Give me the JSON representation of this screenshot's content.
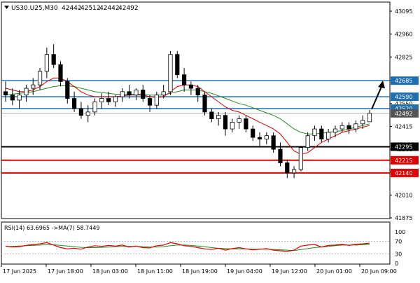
{
  "window": {
    "title_symbol": "US30.U25,M30",
    "ohlc": [
      "42442",
      "42512",
      "42442",
      "42492"
    ],
    "indicator_label": "RSI(14) 63.6965  ->MA(7) 58.7449"
  },
  "colors": {
    "candle": "#000000",
    "ma_fast": "#d40000",
    "ma_slow": "#228b22",
    "support_line": "#000000",
    "resistance_line": "#1f6fb2",
    "red_level": "#e00000",
    "rsi_line": "#e00000",
    "rsi_ma": "#1e8a1e",
    "label_blue_bg": "#1f6fb2",
    "label_red_bg": "#e00000",
    "label_black_bg": "#000000",
    "label_gray_bg": "#555555"
  },
  "chart_data": [
    {
      "type": "candlestick",
      "ylim": [
        41875,
        43095
      ],
      "yticks": [
        "43095",
        "42960",
        "42825",
        "42685",
        "42550",
        "42415",
        "42280",
        "42145",
        "42010",
        "41875"
      ],
      "xtick_labels": [
        "17 Jun 2025",
        "17 Jun 18:00",
        "18 Jun 03:00",
        "18 Jun 11:00",
        "18 Jun 19:00",
        "19 Jun 04:00",
        "19 Jun 12:00",
        "20 Jun 01:00",
        "20 Jun 09:00"
      ],
      "levels": [
        {
          "label": "42685",
          "value": 42685,
          "role": "resistance"
        },
        {
          "label": "42590",
          "value": 42590,
          "role": "resistance"
        },
        {
          "label": "42520",
          "value": 42520,
          "role": "resistance"
        },
        {
          "label": "42295",
          "value": 42295,
          "role": "support"
        },
        {
          "label": "42215",
          "value": 42215,
          "role": "support"
        },
        {
          "label": "42140",
          "value": 42140,
          "role": "support"
        }
      ],
      "current_price": {
        "label": "42492",
        "value": 42492
      },
      "series_ohlc": [
        [
          42620,
          42680,
          42560,
          42600
        ],
        [
          42600,
          42640,
          42540,
          42570
        ],
        [
          42570,
          42630,
          42520,
          42600
        ],
        [
          42600,
          42660,
          42560,
          42640
        ],
        [
          42640,
          42700,
          42600,
          42660
        ],
        [
          42660,
          42760,
          42630,
          42740
        ],
        [
          42740,
          42880,
          42700,
          42840
        ],
        [
          42840,
          42900,
          42760,
          42780
        ],
        [
          42780,
          42800,
          42650,
          42680
        ],
        [
          42680,
          42700,
          42550,
          42580
        ],
        [
          42580,
          42620,
          42500,
          42520
        ],
        [
          42520,
          42560,
          42460,
          42480
        ],
        [
          42480,
          42540,
          42440,
          42500
        ],
        [
          42500,
          42580,
          42480,
          42560
        ],
        [
          42560,
          42610,
          42520,
          42580
        ],
        [
          42580,
          42620,
          42540,
          42560
        ],
        [
          42560,
          42600,
          42530,
          42590
        ],
        [
          42590,
          42640,
          42560,
          42620
        ],
        [
          42620,
          42660,
          42580,
          42600
        ],
        [
          42600,
          42640,
          42570,
          42630
        ],
        [
          42630,
          42660,
          42560,
          42580
        ],
        [
          42580,
          42600,
          42500,
          42540
        ],
        [
          42540,
          42620,
          42520,
          42600
        ],
        [
          42600,
          42660,
          42580,
          42620
        ],
        [
          42620,
          42860,
          42600,
          42840
        ],
        [
          42840,
          42860,
          42700,
          42720
        ],
        [
          42720,
          42760,
          42620,
          42660
        ],
        [
          42660,
          42680,
          42600,
          42640
        ],
        [
          42640,
          42660,
          42560,
          42600
        ],
        [
          42600,
          42620,
          42480,
          42500
        ],
        [
          42500,
          42520,
          42440,
          42460
        ],
        [
          42460,
          42500,
          42420,
          42480
        ],
        [
          42480,
          42500,
          42360,
          42400
        ],
        [
          42400,
          42460,
          42380,
          42440
        ],
        [
          42440,
          42480,
          42400,
          42460
        ],
        [
          42460,
          42480,
          42380,
          42400
        ],
        [
          42400,
          42420,
          42330,
          42350
        ],
        [
          42350,
          42380,
          42300,
          42340
        ],
        [
          42340,
          42380,
          42310,
          42360
        ],
        [
          42360,
          42380,
          42260,
          42280
        ],
        [
          42280,
          42320,
          42180,
          42200
        ],
        [
          42200,
          42220,
          42110,
          42140
        ],
        [
          42140,
          42180,
          42110,
          42160
        ],
        [
          42160,
          42300,
          42150,
          42290
        ],
        [
          42290,
          42380,
          42270,
          42360
        ],
        [
          42360,
          42420,
          42330,
          42400
        ],
        [
          42400,
          42420,
          42320,
          42340
        ],
        [
          42340,
          42400,
          42320,
          42380
        ],
        [
          42380,
          42420,
          42350,
          42400
        ],
        [
          42400,
          42440,
          42380,
          42420
        ],
        [
          42420,
          42440,
          42370,
          42400
        ],
        [
          42400,
          42450,
          42380,
          42430
        ],
        [
          42430,
          42480,
          42400,
          42450
        ],
        [
          42442,
          42512,
          42442,
          42492
        ]
      ],
      "ma_fast": [
        42640,
        42630,
        42620,
        42620,
        42630,
        42650,
        42680,
        42700,
        42700,
        42680,
        42650,
        42620,
        42600,
        42590,
        42590,
        42590,
        42590,
        42595,
        42600,
        42600,
        42600,
        42590,
        42585,
        42590,
        42620,
        42650,
        42660,
        42660,
        42650,
        42620,
        42590,
        42560,
        42530,
        42510,
        42500,
        42480,
        42460,
        42440,
        42420,
        42400,
        42370,
        42320,
        42270,
        42250,
        42260,
        42290,
        42320,
        42340,
        42360,
        42380,
        42390,
        42400,
        42410,
        42420
      ],
      "ma_slow": [
        42600,
        42605,
        42610,
        42615,
        42620,
        42630,
        42640,
        42650,
        42655,
        42655,
        42650,
        42640,
        42630,
        42620,
        42615,
        42610,
        42605,
        42605,
        42605,
        42605,
        42605,
        42600,
        42600,
        42600,
        42610,
        42620,
        42630,
        42630,
        42630,
        42620,
        42610,
        42595,
        42580,
        42565,
        42550,
        42540,
        42525,
        42510,
        42495,
        42480,
        42460,
        42430,
        42400,
        42380,
        42370,
        42370,
        42375,
        42380,
        42385,
        42390,
        42400,
        42410,
        42420,
        42430
      ],
      "arrow_target": 42685
    },
    {
      "type": "line",
      "title": "RSI(14) 63.6965  ->MA(7) 58.7449",
      "ylim": [
        0,
        100
      ],
      "yticks": [
        "100",
        "70",
        "30",
        "0"
      ],
      "series": [
        {
          "name": "RSI(14)",
          "values": [
            55,
            52,
            53,
            57,
            60,
            62,
            66,
            58,
            50,
            46,
            48,
            45,
            52,
            56,
            54,
            57,
            55,
            58,
            52,
            55,
            50,
            49,
            56,
            58,
            66,
            62,
            56,
            54,
            50,
            46,
            44,
            48,
            42,
            47,
            50,
            46,
            43,
            45,
            47,
            42,
            40,
            38,
            42,
            55,
            58,
            60,
            52,
            57,
            58,
            61,
            57,
            61,
            62,
            64
          ]
        },
        {
          "name": "MA(7)",
          "values": [
            54,
            54,
            55,
            56,
            57,
            58,
            60,
            59,
            57,
            55,
            53,
            51,
            50,
            50,
            51,
            52,
            53,
            54,
            54,
            54,
            53,
            52,
            52,
            53,
            56,
            58,
            58,
            57,
            55,
            53,
            50,
            48,
            47,
            46,
            46,
            46,
            45,
            45,
            45,
            44,
            43,
            42,
            41,
            44,
            47,
            50,
            52,
            54,
            56,
            58,
            58,
            58,
            59,
            59
          ]
        }
      ]
    }
  ]
}
